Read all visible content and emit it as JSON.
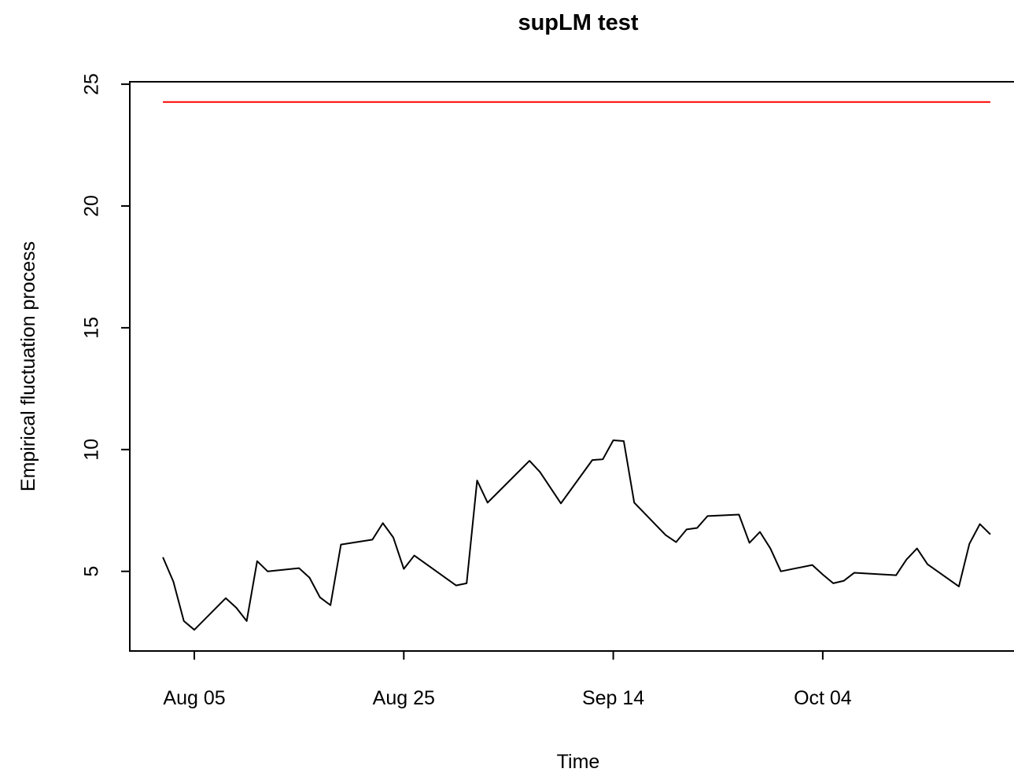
{
  "chart_data": {
    "type": "line",
    "title": "supLM test",
    "x_label": "Time",
    "y_label": "Empirical fluctuation process",
    "x": [
      214,
      215,
      216,
      217,
      220,
      221,
      222,
      223,
      224,
      227,
      228,
      229,
      230,
      231,
      234,
      235,
      236,
      237,
      238,
      242,
      243,
      244,
      245,
      249,
      250,
      252,
      255,
      256,
      257,
      258,
      259,
      262,
      263,
      264,
      265,
      266,
      269,
      270,
      271,
      272,
      273,
      276,
      277,
      278,
      279,
      280,
      284,
      285,
      286,
      287,
      290,
      291,
      292,
      293
    ],
    "values": [
      5.58,
      4.58,
      2.96,
      2.6,
      3.9,
      3.51,
      2.96,
      5.42,
      5.0,
      5.13,
      4.74,
      3.93,
      3.61,
      6.1,
      6.3,
      6.98,
      6.39,
      5.1,
      5.65,
      4.42,
      4.51,
      8.73,
      7.82,
      9.54,
      9.08,
      7.79,
      9.57,
      9.6,
      10.38,
      10.35,
      7.82,
      6.49,
      6.2,
      6.72,
      6.78,
      7.27,
      7.33,
      6.17,
      6.62,
      5.94,
      5.0,
      5.26,
      4.87,
      4.51,
      4.61,
      4.94,
      4.84,
      5.49,
      5.94,
      5.29,
      4.38,
      6.13,
      6.94,
      6.52
    ],
    "color": "#000000",
    "boundary": 24.27,
    "boundary_color": "#ff0000",
    "xlim": [
      210.84,
      296.16
    ],
    "xticks": [
      {
        "value": 217,
        "label": "Aug 05"
      },
      {
        "value": 237,
        "label": "Aug 25"
      },
      {
        "value": 257,
        "label": "Sep 14"
      },
      {
        "value": 277,
        "label": "Oct 04"
      }
    ],
    "ylim": [
      1.73,
      25.1
    ],
    "yticks": [
      5,
      10,
      15,
      20,
      25
    ]
  }
}
